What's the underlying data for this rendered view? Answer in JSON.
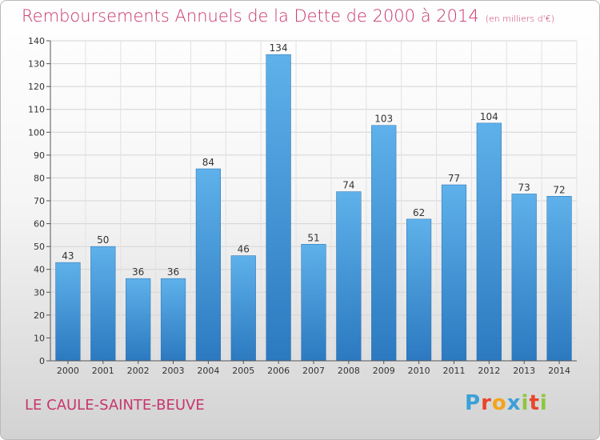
{
  "chart_data": {
    "type": "bar",
    "title": "Remboursements Annuels de la Dette de 2000 à 2014",
    "unit": "(en milliers d'€)",
    "categories": [
      "2000",
      "2001",
      "2002",
      "2003",
      "2004",
      "2005",
      "2006",
      "2007",
      "2008",
      "2009",
      "2010",
      "2011",
      "2012",
      "2013",
      "2014"
    ],
    "values": [
      43,
      50,
      36,
      36,
      84,
      46,
      134,
      51,
      74,
      103,
      62,
      77,
      104,
      73,
      72
    ],
    "ylim": [
      0,
      140
    ],
    "yticks": [
      0,
      10,
      20,
      30,
      40,
      50,
      60,
      70,
      80,
      90,
      100,
      110,
      120,
      130,
      140
    ],
    "grid": true,
    "bar_color": "#4d9fdc"
  },
  "footer": {
    "commune": "LE CAULE-SAINTE-BEUVE",
    "logo_letters": [
      {
        "ch": "P",
        "color": "#3aa0d8"
      },
      {
        "ch": "r",
        "color": "#e8462a"
      },
      {
        "ch": "o",
        "color": "#f2a41c"
      },
      {
        "ch": "x",
        "color": "#3aa0d8"
      },
      {
        "ch": "i",
        "color": "#8dc63f"
      },
      {
        "ch": "t",
        "color": "#e8462a"
      },
      {
        "ch": "i",
        "color": "#8dc63f"
      }
    ]
  }
}
